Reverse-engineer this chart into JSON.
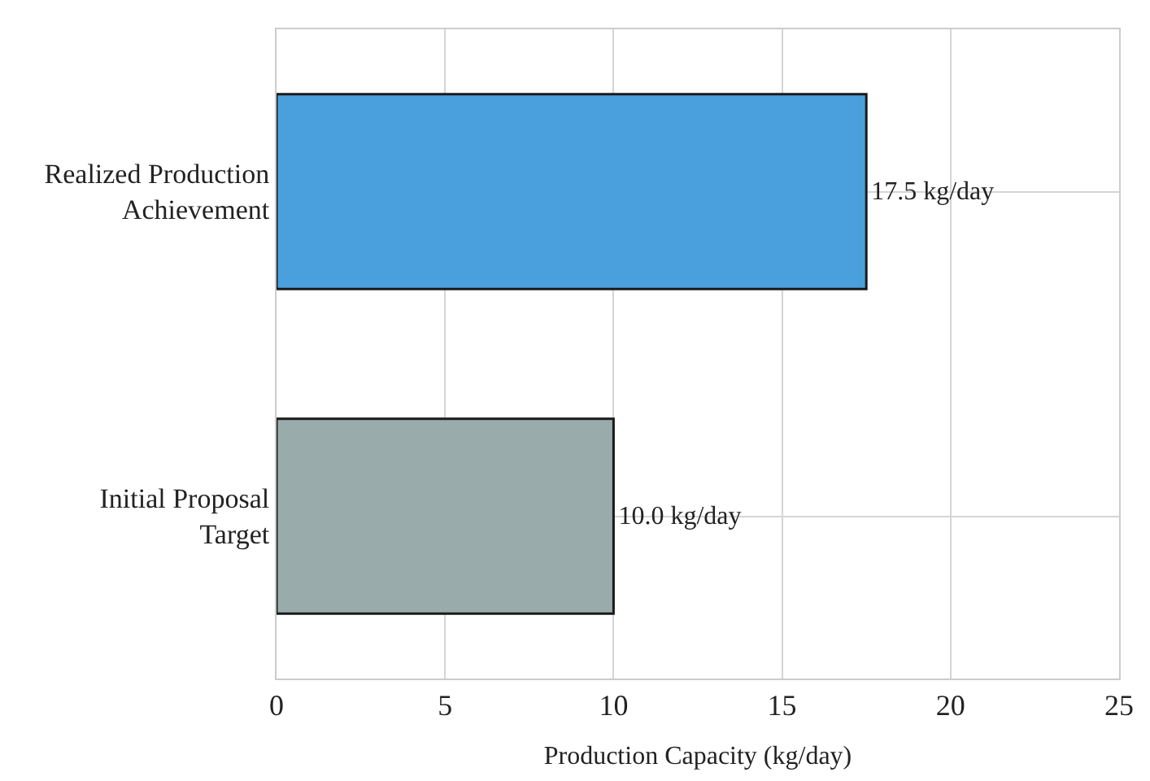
{
  "chart_data": {
    "type": "bar",
    "orientation": "horizontal",
    "categories": [
      "Realized Production Achievement",
      "Initial Proposal Target"
    ],
    "values": [
      17.5,
      10.0
    ],
    "colors": [
      "#4aa0dc",
      "#9aabab"
    ],
    "value_labels": [
      "17.5 kg/day",
      "10.0 kg/day"
    ],
    "xlabel": "Production Capacity (kg/day)",
    "xlim": [
      0,
      25
    ],
    "xticks": [
      0,
      5,
      10,
      15,
      20,
      25
    ],
    "grid": true
  }
}
